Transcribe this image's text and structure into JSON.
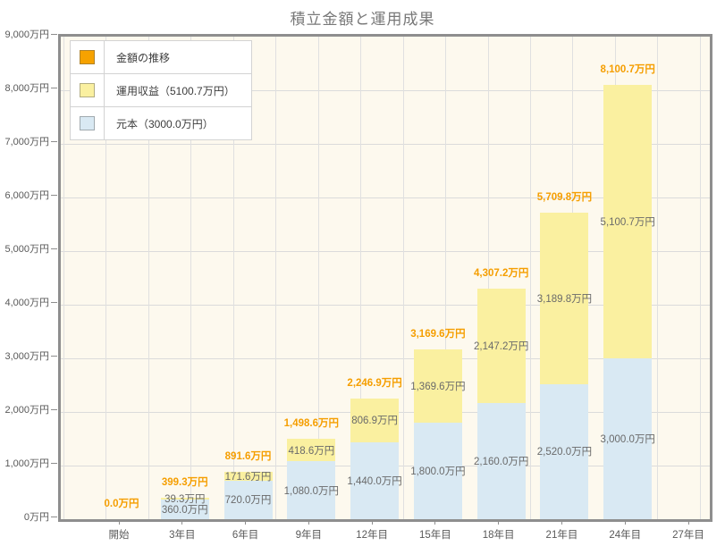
{
  "title": "積立金額と運用成果",
  "legend": {
    "items": [
      {
        "name": "amount-transition",
        "label": "金額の推移",
        "color": "#F6A200"
      },
      {
        "name": "investment-return",
        "label": "運用収益（5100.7万円）",
        "color": "#FAF0A0"
      },
      {
        "name": "principal",
        "label": "元本（3000.0万円）",
        "color": "#D9E9F3"
      }
    ]
  },
  "chart_data": {
    "type": "bar",
    "stacked": true,
    "title": "積立金額と運用成果",
    "legend_position": "top-left",
    "grid": true,
    "categories": [
      "開始",
      "3年目",
      "6年目",
      "9年目",
      "12年目",
      "15年目",
      "18年目",
      "21年目",
      "24年目",
      "27年目"
    ],
    "unit": "万円",
    "series": [
      {
        "name": "元本",
        "color": "#D9E9F3",
        "values": [
          0,
          360.0,
          720.0,
          1080.0,
          1440.0,
          1800.0,
          2160.0,
          2520.0,
          3000.0,
          null
        ],
        "labels": [
          "",
          "360.0万円",
          "720.0万円",
          "1,080.0万円",
          "1,440.0万円",
          "1,800.0万円",
          "2,160.0万円",
          "2,520.0万円",
          "3,000.0万円",
          ""
        ]
      },
      {
        "name": "運用収益",
        "color": "#FAF0A0",
        "values": [
          0,
          39.3,
          171.6,
          418.6,
          806.9,
          1369.6,
          2147.2,
          3189.8,
          5100.7,
          null
        ],
        "labels": [
          "",
          "39.3万円",
          "171.6万円",
          "418.6万円",
          "806.9万円",
          "1,369.6万円",
          "2,147.2万円",
          "3,189.8万円",
          "5,100.7万円",
          ""
        ]
      }
    ],
    "totals": {
      "name": "金額の推移",
      "color": "#F59E00",
      "values": [
        0.0,
        399.3,
        891.6,
        1498.6,
        2246.9,
        3169.6,
        4307.2,
        5709.8,
        8100.7,
        null
      ],
      "labels": [
        "0.0万円",
        "399.3万円",
        "891.6万円",
        "1,498.6万円",
        "2,246.9万円",
        "3,169.6万円",
        "4,307.2万円",
        "5,709.8万円",
        "8,100.7万円",
        ""
      ]
    },
    "y_axis": {
      "min": 0,
      "max": 9000,
      "step": 1000,
      "tick_labels": [
        "0万円",
        "1,000万円",
        "2,000万円",
        "3,000万円",
        "4,000万円",
        "5,000万円",
        "6,000万円",
        "7,000万円",
        "8,000万円",
        "9,000万円"
      ]
    }
  },
  "colors": {
    "plot_background": "#FDF9EE",
    "frame": "#8E8E8E",
    "grid": "#DBDBDB",
    "total_label": "#F59E00",
    "segment_label": "#6A6A6A",
    "axis_text": "#595959",
    "title_text": "#787878"
  }
}
